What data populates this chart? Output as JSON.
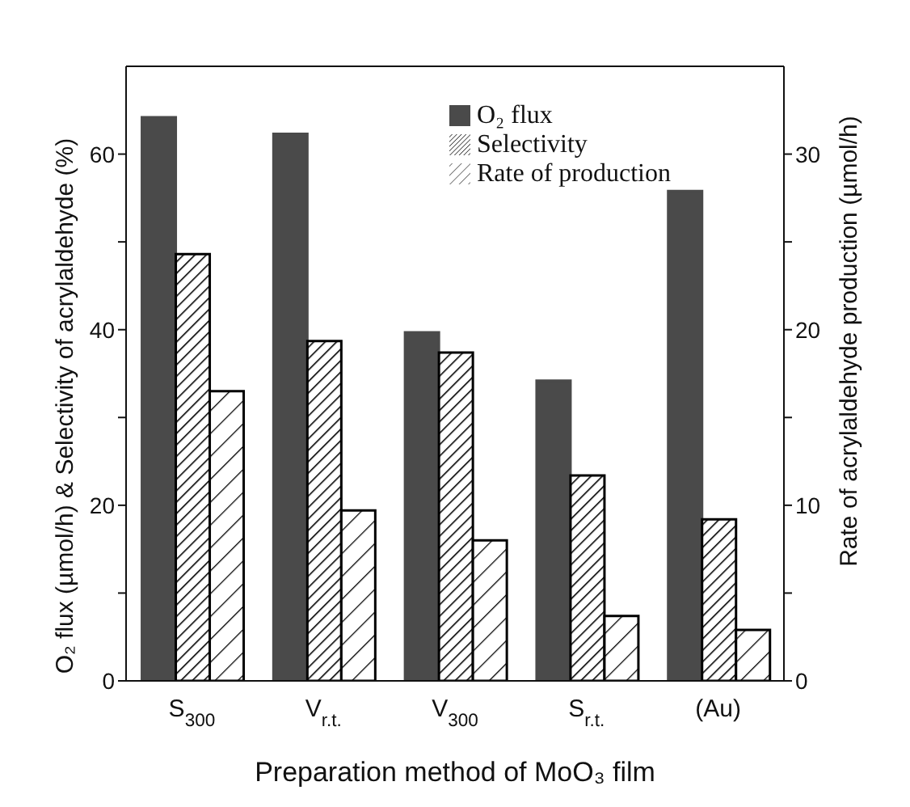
{
  "chart_data": {
    "type": "bar",
    "xlabel": "Preparation method of MoO₃ film",
    "ylabel": "O₂ flux (µmol/h) & Selectivity of acrylaldehyde (%)",
    "y2label": "Rate of acrylaldehyde production (µmol/h)",
    "categories": [
      "S$_{300}$",
      "V$_{r.t.}$",
      "V$_{300}$",
      "S$_{r.t.}$",
      "(Au)"
    ],
    "series": [
      {
        "name": "O₂ flux",
        "color": "#4a4a4a",
        "values": [
          64.2,
          62.3,
          39.7,
          34.2,
          55.8
        ]
      },
      {
        "name": "Selectivity",
        "color": "#000000",
        "values": [
          48.6,
          38.7,
          37.4,
          23.4,
          18.4
        ]
      },
      {
        "name": "Rate of production",
        "color": "#000000",
        "axis": "y2",
        "values": [
          16.5,
          9.7,
          8.0,
          3.7,
          2.9
        ]
      }
    ],
    "ylim": [
      0,
      70
    ],
    "yticks": [
      0,
      {
        "value": 10,
        "label": null
      },
      20,
      {
        "value": 30,
        "label": null
      },
      40,
      {
        "value": 50,
        "label": null
      },
      60
    ],
    "y2lim": [
      0,
      35
    ],
    "y2ticks": [
      0,
      {
        "value": 5,
        "label": null
      },
      10,
      {
        "value": 15,
        "label": null
      },
      20,
      {
        "value": 25,
        "label": null
      },
      30
    ],
    "legend": "top right",
    "grid": false
  }
}
